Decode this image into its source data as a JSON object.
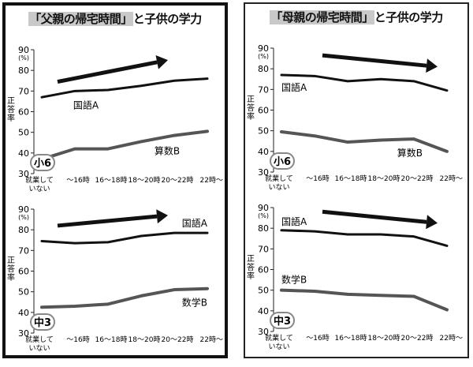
{
  "panels": [
    {
      "id": "left",
      "title_main": "「父親の帰宅時間」",
      "title_rest": "と子供の学力",
      "thick_border": true
    },
    {
      "id": "right",
      "title_main": "「母親の帰宅時間」",
      "title_rest": "と子供の学力",
      "thick_border": false
    }
  ],
  "colors": {
    "kokugo": "#111111",
    "sansu": "#555555",
    "arrow": "#111111",
    "badge_border": "#888888"
  },
  "chart_data": [
    {
      "type": "line",
      "panel": "left",
      "grade_badge": "小6",
      "ylabel": "正答率",
      "y_unit": "(%)",
      "ylim": [
        30,
        90
      ],
      "y_ticks": [
        "90",
        "80",
        "70",
        "60",
        "50",
        "40",
        "30"
      ],
      "categories": [
        "就業して\nいない",
        "〜16時",
        "16〜18時",
        "18〜20時",
        "20〜22時",
        "22時〜"
      ],
      "series": [
        {
          "name": "国語A",
          "values": [
            67,
            70,
            70.5,
            72.5,
            75,
            76
          ]
        },
        {
          "name": "算数B",
          "values": [
            37,
            42,
            42,
            45.5,
            48.5,
            50.5
          ]
        }
      ],
      "trend_arrow": "up"
    },
    {
      "type": "line",
      "panel": "left",
      "grade_badge": "中3",
      "ylabel": "正答率",
      "y_unit": "(%)",
      "ylim": [
        30,
        90
      ],
      "y_ticks": [
        "90",
        "80",
        "70",
        "60",
        "50",
        "40",
        "30"
      ],
      "categories": [
        "就業して\nいない",
        "〜16時",
        "16〜18時",
        "18〜20時",
        "20〜22時",
        "22時〜"
      ],
      "series": [
        {
          "name": "国語A",
          "values": [
            74.5,
            73.5,
            74,
            77,
            78.5,
            78.5
          ]
        },
        {
          "name": "数学B",
          "values": [
            42.5,
            43,
            44,
            48,
            51,
            51.5
          ]
        }
      ],
      "trend_arrow": "up"
    },
    {
      "type": "line",
      "panel": "right",
      "grade_badge": "小6",
      "ylabel": "正答率",
      "y_unit": "(%)",
      "ylim": [
        30,
        90
      ],
      "y_ticks": [
        "90",
        "80",
        "70",
        "60",
        "50",
        "40",
        "30"
      ],
      "categories": [
        "就業して\nいない",
        "〜16時",
        "16〜18時",
        "18〜20時",
        "20〜22時",
        "22時〜"
      ],
      "series": [
        {
          "name": "国語A",
          "values": [
            77,
            76.5,
            74,
            75,
            74,
            69.5
          ]
        },
        {
          "name": "算数B",
          "values": [
            49.5,
            47.5,
            44.5,
            45.5,
            46,
            40
          ]
        }
      ],
      "trend_arrow": "down"
    },
    {
      "type": "line",
      "panel": "right",
      "grade_badge": "中3",
      "ylabel": "正答率",
      "y_unit": "(%)",
      "ylim": [
        30,
        90
      ],
      "y_ticks": [
        "90",
        "80",
        "70",
        "60",
        "50",
        "40",
        "30"
      ],
      "categories": [
        "就業して\nいない",
        "〜16時",
        "16〜18時",
        "18〜20時",
        "20〜22時",
        "22時〜"
      ],
      "series": [
        {
          "name": "国語A",
          "values": [
            79,
            78.5,
            77,
            77,
            76,
            71.5
          ]
        },
        {
          "name": "数学B",
          "values": [
            50,
            49.5,
            48,
            47.5,
            47,
            40.5
          ]
        }
      ],
      "trend_arrow": "down"
    }
  ]
}
